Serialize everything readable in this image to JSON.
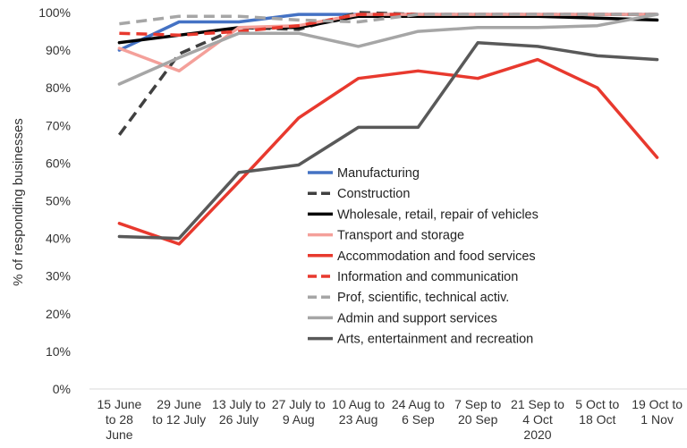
{
  "chart_data": {
    "type": "line",
    "title": "",
    "xlabel": "",
    "ylabel": "% of responding businesses",
    "ylim": [
      0,
      100
    ],
    "y_ticks": [
      "0%",
      "10%",
      "20%",
      "30%",
      "40%",
      "50%",
      "60%",
      "70%",
      "80%",
      "90%",
      "100%"
    ],
    "grid": false,
    "legend_position": "center",
    "categories": [
      [
        "15 June",
        "to 28",
        "June"
      ],
      [
        "29 June",
        "to 12 July"
      ],
      [
        "13 July to",
        "26 July"
      ],
      [
        "27 July to",
        "9 Aug"
      ],
      [
        "10 Aug to",
        "23 Aug"
      ],
      [
        "24 Aug to",
        "6 Sep"
      ],
      [
        "7 Sep to",
        "20 Sep"
      ],
      [
        "21 Sep to",
        "4 Oct",
        "2020"
      ],
      [
        "5 Oct to",
        "18 Oct"
      ],
      [
        "19 Oct to",
        "1 Nov"
      ]
    ],
    "series": [
      {
        "name": "Manufacturing",
        "color": "#4472C4",
        "dash": "solid",
        "values": [
          90,
          97.5,
          97.5,
          99.5,
          99.5,
          99.5,
          99.5,
          99.5,
          99.5,
          99.5
        ]
      },
      {
        "name": "Construction",
        "color": "#404040",
        "dash": "dashed",
        "values": [
          67.5,
          89,
          96,
          95.5,
          100,
          99.5,
          99.5,
          99.5,
          99.5,
          99.5
        ]
      },
      {
        "name": "Wholesale, retail, repair of vehicles",
        "color": "#000000",
        "dash": "solid",
        "values": [
          92,
          94,
          96,
          96,
          99,
          99,
          99,
          99,
          98.5,
          98
        ]
      },
      {
        "name": "Transport and storage",
        "color": "#F4A09A",
        "dash": "solid",
        "values": [
          90.5,
          84.5,
          96,
          96.5,
          99.5,
          99.5,
          99.5,
          99.5,
          99.5,
          99.5
        ]
      },
      {
        "name": "Accommodation and food services",
        "color": "#E8392E",
        "dash": "solid",
        "values": [
          44,
          38.5,
          55,
          72,
          82.5,
          84.5,
          82.5,
          87.5,
          80,
          61.5
        ]
      },
      {
        "name": "Information and communication",
        "color": "#E8392E",
        "dash": "dashed",
        "values": [
          94.5,
          94,
          95,
          96.5,
          99.5,
          99.5,
          99.5,
          99.5,
          99.5,
          99.5
        ]
      },
      {
        "name": "Prof, scientific, technical activ.",
        "color": "#A6A6A6",
        "dash": "dashed",
        "values": [
          97,
          99,
          99,
          98,
          97.5,
          99.5,
          99.5,
          99.5,
          99.5,
          99.5
        ]
      },
      {
        "name": "Admin and support services",
        "color": "#A6A6A6",
        "dash": "solid",
        "values": [
          81,
          88,
          94.5,
          94.5,
          91,
          95,
          96,
          96,
          96.5,
          99.5
        ]
      },
      {
        "name": "Arts, entertainment and recreation",
        "color": "#595959",
        "dash": "solid",
        "values": [
          40.5,
          40,
          57.5,
          59.5,
          69.5,
          69.5,
          92,
          91,
          88.5,
          87.5
        ]
      }
    ]
  }
}
